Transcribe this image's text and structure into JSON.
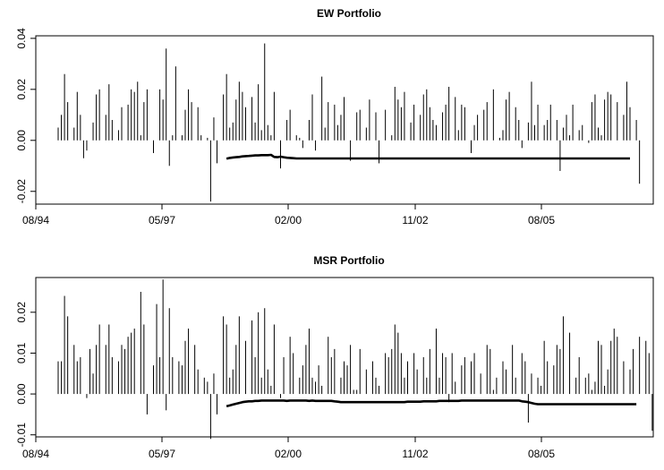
{
  "chart_data": [
    {
      "type": "bar",
      "title": "EW Portfolio",
      "xlabel": "",
      "ylabel": "",
      "x_tick_labels": [
        "08/94",
        "05/97",
        "02/00",
        "11/02",
        "08/05"
      ],
      "y_ticks": [
        -0.02,
        0.0,
        0.02,
        0.04
      ],
      "y_tick_labels": [
        "-0.02",
        "0.00",
        "0.02",
        "0.04"
      ],
      "ylim": [
        -0.025,
        0.041
      ],
      "grid": false,
      "legend": "none",
      "series": [
        {
          "values": [
            0.005,
            0.01,
            0.026,
            0.015,
            0.0,
            0.005,
            0.019,
            0.01,
            -0.007,
            -0.004,
            0.0,
            0.007,
            0.018,
            0.02,
            0.0,
            0.01,
            0.022,
            0.008,
            0.0,
            0.004,
            0.013,
            0.0,
            0.014,
            0.02,
            0.019,
            0.023,
            0.002,
            0.015,
            0.02,
            0.0,
            -0.005,
            0.0,
            0.02,
            0.016,
            0.036,
            -0.01,
            0.002,
            0.029,
            0.0,
            0.002,
            0.012,
            0.02,
            0.015,
            0.0,
            0.013,
            0.002,
            0.0,
            0.001,
            -0.024,
            0.009,
            -0.009,
            0.0,
            0.018,
            0.026,
            0.005,
            0.007,
            0.016,
            0.023,
            0.019,
            0.013,
            0.0,
            0.017,
            0.007,
            0.022,
            0.004,
            0.038,
            0.006,
            0.002,
            0.019,
            0.0,
            -0.011,
            0.0,
            0.008,
            0.012,
            0.0,
            0.002,
            0.001,
            -0.003,
            0.0,
            0.008,
            0.018,
            -0.004,
            0.0,
            0.025,
            0.005,
            0.015,
            0.0,
            0.014,
            0.006,
            0.01,
            0.017,
            0.0,
            -0.008,
            0.0,
            0.011,
            0.012,
            0.0,
            0.005,
            0.016,
            0.0,
            0.011,
            -0.009,
            0.0,
            0.012,
            0.0,
            0.002,
            0.021,
            0.016,
            0.013,
            0.019,
            0.0,
            0.007,
            0.014,
            0.0,
            0.01,
            0.018,
            0.02,
            0.013,
            0.008,
            0.006,
            0.0,
            0.011,
            0.014,
            0.021,
            0.0,
            0.017,
            0.004,
            0.014,
            0.013,
            0.0,
            -0.005,
            0.006,
            0.01,
            0.0,
            0.012,
            0.015,
            0.0,
            0.02,
            0.0,
            0.001,
            0.004,
            0.016,
            0.019,
            0.0,
            0.013,
            0.008,
            -0.003,
            0.0,
            0.007,
            0.023,
            0.006,
            0.014,
            0.0,
            0.006,
            0.008,
            0.014,
            0.0,
            0.008,
            -0.012,
            0.005,
            0.01,
            0.002,
            0.014,
            0.0,
            0.004,
            0.006,
            0.0,
            -0.001,
            0.015,
            0.018,
            0.005,
            0.002,
            0.016,
            0.019,
            0.018,
            0.0,
            0.015,
            0.0,
            0.01,
            0.023,
            0.013,
            0.0,
            0.008,
            -0.017
          ]
        },
        {
          "name": "",
          "x_start_index": 53,
          "values": [
            -0.0072,
            -0.0069,
            -0.0067,
            -0.0066,
            -0.0065,
            -0.0063,
            -0.0062,
            -0.0061,
            -0.006,
            -0.0059,
            -0.0059,
            -0.0058,
            -0.0058,
            -0.0058,
            -0.0057,
            -0.0065,
            -0.0066,
            -0.0064,
            -0.0066,
            -0.0068,
            -0.0069,
            -0.007,
            -0.0071,
            -0.0071,
            -0.0071,
            -0.0071,
            -0.0071,
            -0.0071,
            -0.0071,
            -0.0071,
            -0.0071,
            -0.0071,
            -0.0071,
            -0.0071,
            -0.0071,
            -0.0071,
            -0.0071,
            -0.0071,
            -0.0071,
            -0.0071,
            -0.0071,
            -0.0071,
            -0.0071,
            -0.0071,
            -0.0071,
            -0.0071,
            -0.0071,
            -0.0071,
            -0.0071,
            -0.0071,
            -0.0071,
            -0.0071,
            -0.0071,
            -0.0071,
            -0.0071,
            -0.0071,
            -0.0071,
            -0.0071,
            -0.0071,
            -0.0071,
            -0.0071,
            -0.0071,
            -0.0071,
            -0.0071,
            -0.0071,
            -0.0071,
            -0.0071,
            -0.0071,
            -0.0071,
            -0.0071,
            -0.0071,
            -0.0071,
            -0.0071,
            -0.0071,
            -0.0071,
            -0.0071,
            -0.0071,
            -0.0071,
            -0.0071,
            -0.0071,
            -0.0071,
            -0.0071,
            -0.0071,
            -0.0071,
            -0.0071,
            -0.0071,
            -0.0071,
            -0.0071,
            -0.0071,
            -0.0071,
            -0.0071,
            -0.0071,
            -0.0071,
            -0.0071,
            -0.0071,
            -0.0071,
            -0.0071,
            -0.0071,
            -0.0071,
            -0.0071,
            -0.0071,
            -0.0071,
            -0.0071,
            -0.0071,
            -0.0071,
            -0.0071,
            -0.0071,
            -0.0071,
            -0.0071,
            -0.0071,
            -0.0071,
            -0.0071,
            -0.0071,
            -0.0071,
            -0.0071,
            -0.0071,
            -0.0071,
            -0.0071,
            -0.0071,
            -0.0071,
            -0.0071,
            -0.0071,
            -0.0071,
            -0.0071,
            -0.0071,
            -0.0071,
            -0.0071,
            -0.0071
          ]
        }
      ]
    },
    {
      "type": "bar",
      "title": "MSR Portfolio",
      "xlabel": "",
      "ylabel": "",
      "x_tick_labels": [
        "08/94",
        "05/97",
        "02/00",
        "11/02",
        "08/05"
      ],
      "y_ticks": [
        -0.01,
        0.0,
        0.01,
        0.02
      ],
      "y_tick_labels": [
        "-0.01",
        "0.00",
        "0.01",
        "0.02"
      ],
      "ylim": [
        -0.0105,
        0.0285
      ],
      "grid": false,
      "legend": "none",
      "series": [
        {
          "values": [
            0.008,
            0.008,
            0.024,
            0.019,
            0.0,
            0.012,
            0.008,
            0.009,
            0.0,
            -0.001,
            0.011,
            0.005,
            0.012,
            0.017,
            0.0,
            0.012,
            0.017,
            0.009,
            0.0,
            0.008,
            0.012,
            0.011,
            0.014,
            0.015,
            0.016,
            0.0,
            0.025,
            0.017,
            -0.005,
            0.0,
            0.007,
            0.022,
            0.009,
            0.028,
            -0.004,
            0.021,
            0.009,
            0.0,
            0.008,
            0.007,
            0.013,
            0.016,
            0.0,
            0.012,
            0.006,
            0.0,
            0.004,
            0.003,
            -0.011,
            0.005,
            -0.005,
            0.0,
            0.019,
            0.017,
            0.004,
            0.006,
            0.012,
            0.019,
            0.0,
            0.013,
            0.0,
            0.018,
            0.009,
            0.02,
            0.004,
            0.021,
            0.006,
            0.002,
            0.017,
            0.0,
            -0.001,
            0.009,
            0.0,
            0.014,
            0.01,
            0.0,
            0.004,
            0.007,
            0.012,
            0.016,
            0.004,
            0.003,
            0.007,
            0.002,
            0.0,
            0.014,
            0.009,
            0.011,
            0.0,
            0.004,
            0.008,
            0.007,
            0.012,
            0.001,
            0.001,
            0.011,
            0.0,
            0.006,
            0.0,
            0.008,
            0.004,
            0.002,
            0.0,
            0.01,
            0.009,
            0.011,
            0.017,
            0.015,
            0.01,
            0.004,
            0.008,
            0.0,
            0.01,
            0.006,
            0.0,
            0.009,
            0.004,
            0.011,
            0.0,
            0.016,
            0.004,
            0.01,
            0.009,
            -0.002,
            0.01,
            0.003,
            0.0,
            0.007,
            0.009,
            0.0,
            0.008,
            0.01,
            0.0,
            0.005,
            0.0,
            0.012,
            0.011,
            0.001,
            0.004,
            0.0,
            0.008,
            0.006,
            0.0,
            0.012,
            0.004,
            0.0,
            0.01,
            0.008,
            -0.007,
            0.005,
            0.0,
            0.004,
            0.002,
            0.013,
            0.008,
            0.0,
            0.007,
            0.012,
            0.011,
            0.019,
            0.0,
            0.015,
            0.0,
            0.004,
            0.009,
            0.0,
            0.004,
            0.005,
            0.001,
            0.003,
            0.013,
            0.012,
            0.002,
            0.006,
            0.013,
            0.016,
            0.014,
            0.0,
            0.008,
            0.0,
            0.006,
            0.011,
            0.0,
            0.014,
            0.0,
            0.013,
            0.01,
            -0.009
          ]
        },
        {
          "name": "",
          "x_start_index": 53,
          "values": [
            -0.003,
            -0.0028,
            -0.0026,
            -0.0024,
            -0.0022,
            -0.002,
            -0.0019,
            -0.0018,
            -0.0018,
            -0.0017,
            -0.0017,
            -0.0016,
            -0.0016,
            -0.0016,
            -0.0016,
            -0.0016,
            -0.0016,
            -0.0016,
            -0.0016,
            -0.0017,
            -0.0016,
            -0.0016,
            -0.0016,
            -0.0016,
            -0.0016,
            -0.0016,
            -0.0017,
            -0.0016,
            -0.0017,
            -0.0017,
            -0.0017,
            -0.0017,
            -0.0017,
            -0.0017,
            -0.0018,
            -0.0019,
            -0.002,
            -0.002,
            -0.002,
            -0.002,
            -0.002,
            -0.002,
            -0.002,
            -0.002,
            -0.002,
            -0.002,
            -0.002,
            -0.002,
            -0.002,
            -0.002,
            -0.002,
            -0.002,
            -0.002,
            -0.002,
            -0.002,
            -0.002,
            -0.002,
            -0.0019,
            -0.0019,
            -0.0019,
            -0.0019,
            -0.0019,
            -0.0018,
            -0.0018,
            -0.0018,
            -0.0018,
            -0.0018,
            -0.0017,
            -0.0017,
            -0.0017,
            -0.0017,
            -0.0017,
            -0.0017,
            -0.0017,
            -0.0016,
            -0.0016,
            -0.0016,
            -0.0016,
            -0.0016,
            -0.0016,
            -0.0016,
            -0.0016,
            -0.0016,
            -0.0016,
            -0.0016,
            -0.0016,
            -0.0016,
            -0.0016,
            -0.0016,
            -0.0016,
            -0.0016,
            -0.0016,
            -0.0016,
            -0.0018,
            -0.0019,
            -0.002,
            -0.0022,
            -0.0024,
            -0.0025,
            -0.0025,
            -0.0025,
            -0.0025,
            -0.0025,
            -0.0025,
            -0.0025,
            -0.0025,
            -0.0025,
            -0.0025,
            -0.0025,
            -0.0025,
            -0.0025,
            -0.0025,
            -0.0025,
            -0.0025,
            -0.0025,
            -0.0025,
            -0.0025,
            -0.0025,
            -0.0025,
            -0.0025,
            -0.0025,
            -0.0025,
            -0.0025,
            -0.0025,
            -0.0025,
            -0.0025,
            -0.0025,
            -0.0025,
            -0.0025,
            -0.0025
          ]
        }
      ]
    }
  ]
}
